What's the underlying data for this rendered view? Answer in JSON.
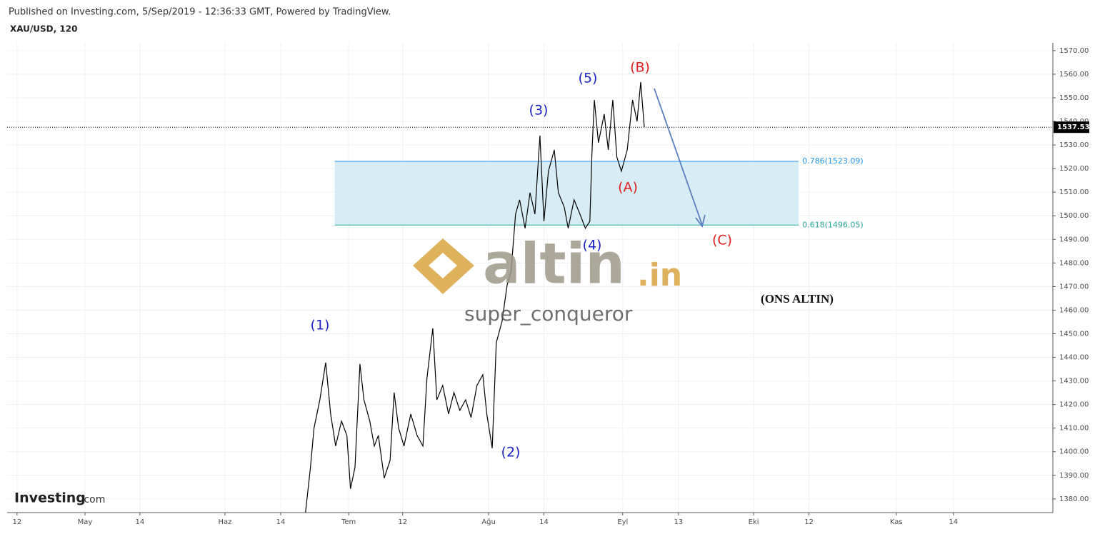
{
  "header": {
    "published": "Published on Investing.com, 5/Sep/2019 - 12:36:33 GMT, Powered by TradingView.",
    "symbol": "XAU/USD, 120"
  },
  "chart_data": {
    "type": "line",
    "series": [
      {
        "name": "XAU/USD",
        "color": "#000000",
        "x": [
          64.1,
          65.2,
          66.0,
          67.3,
          68.6,
          69.7,
          70.8,
          72.1,
          73.3,
          74.1,
          75.1,
          76.2,
          77.1,
          78.4,
          79.4,
          80.3,
          81.6,
          82.9,
          83.8,
          84.8,
          86.0,
          87.5,
          88.9,
          90.2,
          91.1,
          92.4,
          93.3,
          94.6,
          95.9,
          97.1,
          98.4,
          99.7,
          100.9,
          102.2,
          103.5,
          104.4,
          105.6,
          106.5,
          107.8,
          108.9,
          109.8,
          110.8,
          111.7,
          112.9,
          114.0,
          115.1,
          116.2,
          117.1,
          118.1,
          119.4,
          120.3,
          121.6,
          122.5,
          123.8,
          125.1,
          126.3,
          127.3,
          127.8,
          128.3,
          129.2,
          130.5,
          131.4,
          132.4,
          133.3,
          134.3,
          135.6,
          136.8,
          137.8,
          138.6,
          139.4
        ],
        "values": [
          1374.2,
          1393.3,
          1410.0,
          1422.0,
          1437.8,
          1416.0,
          1402.4,
          1413.0,
          1406.9,
          1384.3,
          1393.4,
          1437.2,
          1422.0,
          1413.0,
          1402.4,
          1406.9,
          1388.8,
          1396.3,
          1425.1,
          1410.0,
          1402.4,
          1416.0,
          1406.9,
          1402.4,
          1431.1,
          1452.3,
          1422.0,
          1428.1,
          1416.0,
          1425.1,
          1417.5,
          1422.0,
          1414.5,
          1428.1,
          1432.6,
          1416.0,
          1401.5,
          1446.2,
          1455.3,
          1470.5,
          1476.5,
          1500.7,
          1506.8,
          1494.7,
          1509.8,
          1500.7,
          1534.0,
          1497.7,
          1518.9,
          1527.9,
          1509.8,
          1503.7,
          1494.7,
          1506.8,
          1500.7,
          1494.7,
          1497.7,
          1527.9,
          1549.1,
          1531.0,
          1543.1,
          1527.9,
          1549.1,
          1524.9,
          1518.9,
          1527.9,
          1549.1,
          1540.0,
          1556.7,
          1537.53
        ]
      }
    ],
    "last_price": {
      "value": 1537.53,
      "label": "1537.53"
    },
    "levels": [
      {
        "value": 1523.09,
        "label": "0.786(1523.09)",
        "color": "#2196f3"
      },
      {
        "value": 1496.05,
        "label": "0.618(1496.05)",
        "color": "#26a69a"
      }
    ],
    "zone": {
      "x": [
        70.6,
        173.7
      ],
      "color": "#d2ebf5"
    },
    "xlim": [
      -2.2,
      230.2
    ],
    "xticks": [
      {
        "value": 0,
        "label": "12"
      },
      {
        "value": 15.1,
        "label": "May"
      },
      {
        "value": 27.3,
        "label": "14"
      },
      {
        "value": 46.2,
        "label": "Haz"
      },
      {
        "value": 58.6,
        "label": "14"
      },
      {
        "value": 73.7,
        "label": "Tem"
      },
      {
        "value": 85.7,
        "label": "12"
      },
      {
        "value": 104.8,
        "label": "Ağu"
      },
      {
        "value": 117.1,
        "label": "14"
      },
      {
        "value": 134.6,
        "label": "Eyl"
      },
      {
        "value": 147.0,
        "label": "13"
      },
      {
        "value": 163.7,
        "label": "Eki"
      },
      {
        "value": 176.0,
        "label": "12"
      },
      {
        "value": 195.4,
        "label": "Kas"
      },
      {
        "value": 208.1,
        "label": "14"
      }
    ],
    "ylim": [
      1374.2,
      1573.3
    ],
    "yticks": [
      {
        "value": 1380,
        "label": "1380.00"
      },
      {
        "value": 1390,
        "label": "1390.00"
      },
      {
        "value": 1400,
        "label": "1400.00"
      },
      {
        "value": 1410,
        "label": "1410.00"
      },
      {
        "value": 1420,
        "label": "1420.00"
      },
      {
        "value": 1430,
        "label": "1430.00"
      },
      {
        "value": 1440,
        "label": "1440.00"
      },
      {
        "value": 1450,
        "label": "1450.00"
      },
      {
        "value": 1460,
        "label": "1460.00"
      },
      {
        "value": 1470,
        "label": "1470.00"
      },
      {
        "value": 1480,
        "label": "1480.00"
      },
      {
        "value": 1490,
        "label": "1490.00"
      },
      {
        "value": 1500,
        "label": "1500.00"
      },
      {
        "value": 1510,
        "label": "1510.00"
      },
      {
        "value": 1520,
        "label": "1520.00"
      },
      {
        "value": 1530,
        "label": "1530.00"
      },
      {
        "value": 1540,
        "label": "1540.00"
      },
      {
        "value": 1550,
        "label": "1550.00"
      },
      {
        "value": 1560,
        "label": "1560.00"
      },
      {
        "value": 1570,
        "label": "1570.00"
      }
    ],
    "grid": true,
    "annotations": [
      "(1)",
      "(2)",
      "(3)",
      "(4)",
      "(5)",
      "(A)",
      "(B)",
      "(C)",
      "(ONS ALTIN)"
    ]
  },
  "watermark": {
    "logo": "altin",
    "logo_suffix": ".in",
    "user": "super_conqueror"
  },
  "footer_logo": {
    "brand": "Investing",
    "suffix": ".com"
  }
}
